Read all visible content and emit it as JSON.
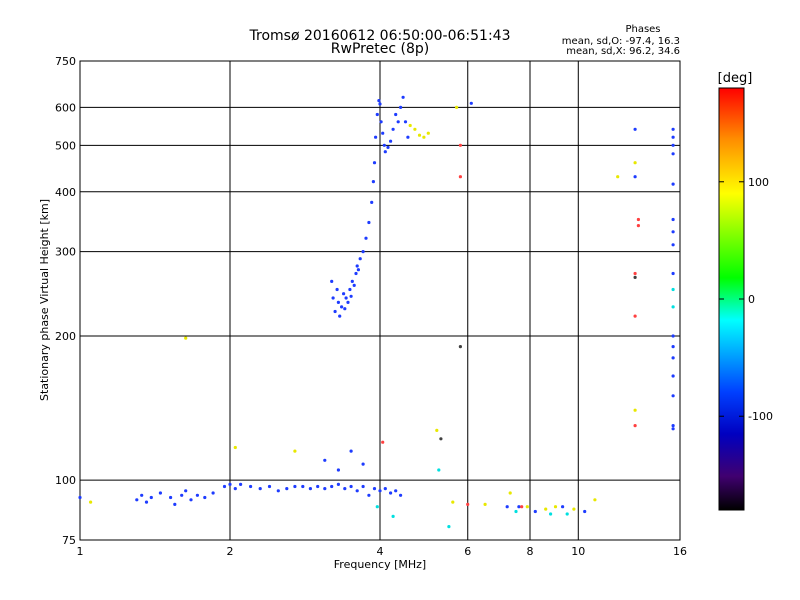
{
  "chart_data": {
    "type": "scatter",
    "title": "Tromsø 20160612 06:50:00-06:51:43",
    "subtitle": "RwPretec (8p)",
    "xlabel": "Frequency [MHz]",
    "ylabel": "Stationary phase Virtual Height [km]",
    "x_scale": "log",
    "y_scale": "log",
    "xlim": [
      1,
      16
    ],
    "ylim": [
      75,
      750
    ],
    "x_ticks": [
      1,
      2,
      4,
      6,
      8,
      10,
      16
    ],
    "y_ticks": [
      75,
      100,
      200,
      300,
      400,
      500,
      600,
      750
    ],
    "grid": true,
    "phases_box": {
      "title": "Phases",
      "line1": "mean, sd,O: -97.4, 16.3",
      "line2": "mean, sd,X:  96.2, 34.6"
    },
    "colorbar": {
      "label": "[deg]",
      "range": [
        -180,
        180
      ],
      "ticks": [
        100,
        0,
        -100
      ],
      "colors_top_to_bottom": [
        "#ff0000",
        "#ff8c00",
        "#ffff00",
        "#00ff00",
        "#00ffff",
        "#0040ff",
        "#0000c0",
        "#400070",
        "#000000"
      ]
    },
    "series": [
      {
        "color": "#1e3cff",
        "points": [
          [
            0.95,
            92
          ],
          [
            1.0,
            92
          ],
          [
            1.3,
            91
          ],
          [
            1.33,
            93
          ],
          [
            1.36,
            90
          ],
          [
            1.39,
            92
          ],
          [
            1.45,
            94
          ],
          [
            1.52,
            92
          ],
          [
            1.55,
            89
          ],
          [
            1.6,
            93
          ],
          [
            1.63,
            95
          ],
          [
            1.67,
            91
          ],
          [
            1.72,
            93
          ],
          [
            1.78,
            92
          ],
          [
            1.85,
            94
          ],
          [
            1.95,
            97
          ],
          [
            2.0,
            98
          ],
          [
            2.05,
            96
          ],
          [
            2.1,
            98
          ],
          [
            2.2,
            97
          ],
          [
            2.3,
            96
          ],
          [
            2.4,
            97
          ],
          [
            2.5,
            95
          ],
          [
            2.6,
            96
          ],
          [
            2.7,
            97
          ],
          [
            2.8,
            97
          ],
          [
            2.9,
            96
          ],
          [
            3.0,
            97
          ],
          [
            3.1,
            96
          ],
          [
            3.2,
            97
          ],
          [
            3.3,
            98
          ],
          [
            3.4,
            96
          ],
          [
            3.5,
            97
          ],
          [
            3.6,
            95
          ],
          [
            3.7,
            97
          ],
          [
            3.8,
            93
          ],
          [
            3.9,
            96
          ],
          [
            4.0,
            95
          ],
          [
            4.1,
            96
          ],
          [
            4.2,
            94
          ],
          [
            4.3,
            95
          ],
          [
            4.4,
            93
          ],
          [
            3.2,
            260
          ],
          [
            3.22,
            240
          ],
          [
            3.25,
            225
          ],
          [
            3.28,
            250
          ],
          [
            3.3,
            235
          ],
          [
            3.32,
            220
          ],
          [
            3.35,
            230
          ],
          [
            3.38,
            245
          ],
          [
            3.4,
            228
          ],
          [
            3.42,
            240
          ],
          [
            3.45,
            235
          ],
          [
            3.48,
            250
          ],
          [
            3.5,
            242
          ],
          [
            3.52,
            260
          ],
          [
            3.55,
            255
          ],
          [
            3.58,
            270
          ],
          [
            3.6,
            280
          ],
          [
            3.62,
            275
          ],
          [
            3.65,
            290
          ],
          [
            3.7,
            300
          ],
          [
            3.75,
            320
          ],
          [
            3.8,
            345
          ],
          [
            3.85,
            380
          ],
          [
            3.88,
            420
          ],
          [
            3.9,
            460
          ],
          [
            3.92,
            520
          ],
          [
            3.95,
            580
          ],
          [
            3.98,
            620
          ],
          [
            4.0,
            610
          ],
          [
            4.02,
            560
          ],
          [
            4.05,
            530
          ],
          [
            4.08,
            500
          ],
          [
            4.1,
            485
          ],
          [
            4.15,
            495
          ],
          [
            4.2,
            510
          ],
          [
            4.25,
            540
          ],
          [
            4.3,
            580
          ],
          [
            4.35,
            560
          ],
          [
            4.4,
            600
          ],
          [
            4.45,
            630
          ],
          [
            4.5,
            560
          ],
          [
            4.55,
            520
          ],
          [
            3.1,
            110
          ],
          [
            3.3,
            105
          ],
          [
            3.5,
            115
          ],
          [
            3.7,
            108
          ],
          [
            6.1,
            612
          ],
          [
            7.2,
            88
          ],
          [
            7.6,
            88
          ],
          [
            8.2,
            86
          ],
          [
            9.3,
            88
          ],
          [
            10.3,
            86
          ],
          [
            13.0,
            540
          ],
          [
            13.0,
            430
          ],
          [
            15.5,
            540
          ],
          [
            15.5,
            520
          ],
          [
            15.5,
            500
          ],
          [
            15.5,
            480
          ],
          [
            15.5,
            415
          ],
          [
            15.5,
            350
          ],
          [
            15.5,
            330
          ],
          [
            15.5,
            310
          ],
          [
            15.5,
            270
          ],
          [
            15.5,
            200
          ],
          [
            15.5,
            190
          ],
          [
            15.5,
            180
          ],
          [
            15.5,
            165
          ],
          [
            15.5,
            150
          ],
          [
            15.5,
            130
          ],
          [
            15.5,
            128
          ]
        ]
      },
      {
        "color": "#e8e800",
        "points": [
          [
            1.05,
            90
          ],
          [
            1.63,
            198
          ],
          [
            2.05,
            117
          ],
          [
            2.7,
            115
          ],
          [
            4.6,
            550
          ],
          [
            4.7,
            540
          ],
          [
            4.8,
            525
          ],
          [
            4.9,
            520
          ],
          [
            5.0,
            530
          ],
          [
            5.7,
            600
          ],
          [
            5.2,
            127
          ],
          [
            5.6,
            90
          ],
          [
            6.5,
            89
          ],
          [
            7.3,
            94
          ],
          [
            7.9,
            88
          ],
          [
            8.6,
            87
          ],
          [
            9.0,
            88
          ],
          [
            9.8,
            87
          ],
          [
            10.8,
            91
          ],
          [
            12.0,
            430
          ],
          [
            13.0,
            460
          ],
          [
            13.0,
            140
          ]
        ]
      },
      {
        "color": "#ff4040",
        "points": [
          [
            4.05,
            120
          ],
          [
            5.8,
            500
          ],
          [
            5.8,
            430
          ],
          [
            6.0,
            89
          ],
          [
            7.7,
            88
          ],
          [
            13.2,
            350
          ],
          [
            13.2,
            340
          ],
          [
            13.0,
            270
          ],
          [
            13.0,
            220
          ],
          [
            13.0,
            130
          ]
        ]
      },
      {
        "color": "#00e0e0",
        "points": [
          [
            5.25,
            105
          ],
          [
            5.5,
            80
          ],
          [
            3.95,
            88
          ],
          [
            4.25,
            84
          ],
          [
            7.5,
            86
          ],
          [
            8.8,
            85
          ],
          [
            9.5,
            85
          ],
          [
            15.5,
            250
          ],
          [
            15.5,
            230
          ]
        ]
      },
      {
        "color": "#404040",
        "points": [
          [
            5.8,
            190
          ],
          [
            5.3,
            122
          ],
          [
            13.0,
            265
          ]
        ]
      }
    ]
  }
}
